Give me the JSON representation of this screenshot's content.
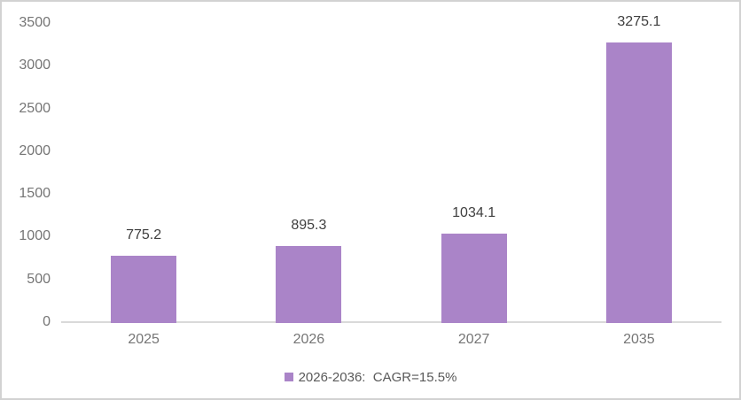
{
  "chart_data": {
    "type": "bar",
    "categories": [
      "2025",
      "2026",
      "2027",
      "2035"
    ],
    "values": [
      775.2,
      895.3,
      1034.1,
      3275.1
    ],
    "data_labels": [
      "775.2",
      "895.3",
      "1034.1",
      "3275.1"
    ],
    "series": [
      {
        "name": "2026-2036:  CAGR=15.5%",
        "values": [
          775.2,
          895.3,
          1034.1,
          3275.1
        ]
      }
    ],
    "title": "",
    "xlabel": "",
    "ylabel": "",
    "ylim": [
      0,
      3500
    ],
    "ytick_interval": 500,
    "yticks": [
      0,
      500,
      1000,
      1500,
      2000,
      2500,
      3000,
      3500
    ],
    "grid": false,
    "legend": {
      "label": "2026-2036:  CAGR=15.5%",
      "position": "bottom",
      "marker": "square"
    },
    "colors": {
      "bar_fill": "#aa84c8",
      "axis_line": "#d9d9d9",
      "tick_label": "#757575",
      "data_label": "#3f3f3f",
      "legend_text": "#595959",
      "frame_border": "#d2d2d2",
      "background": "#ffffff"
    }
  }
}
